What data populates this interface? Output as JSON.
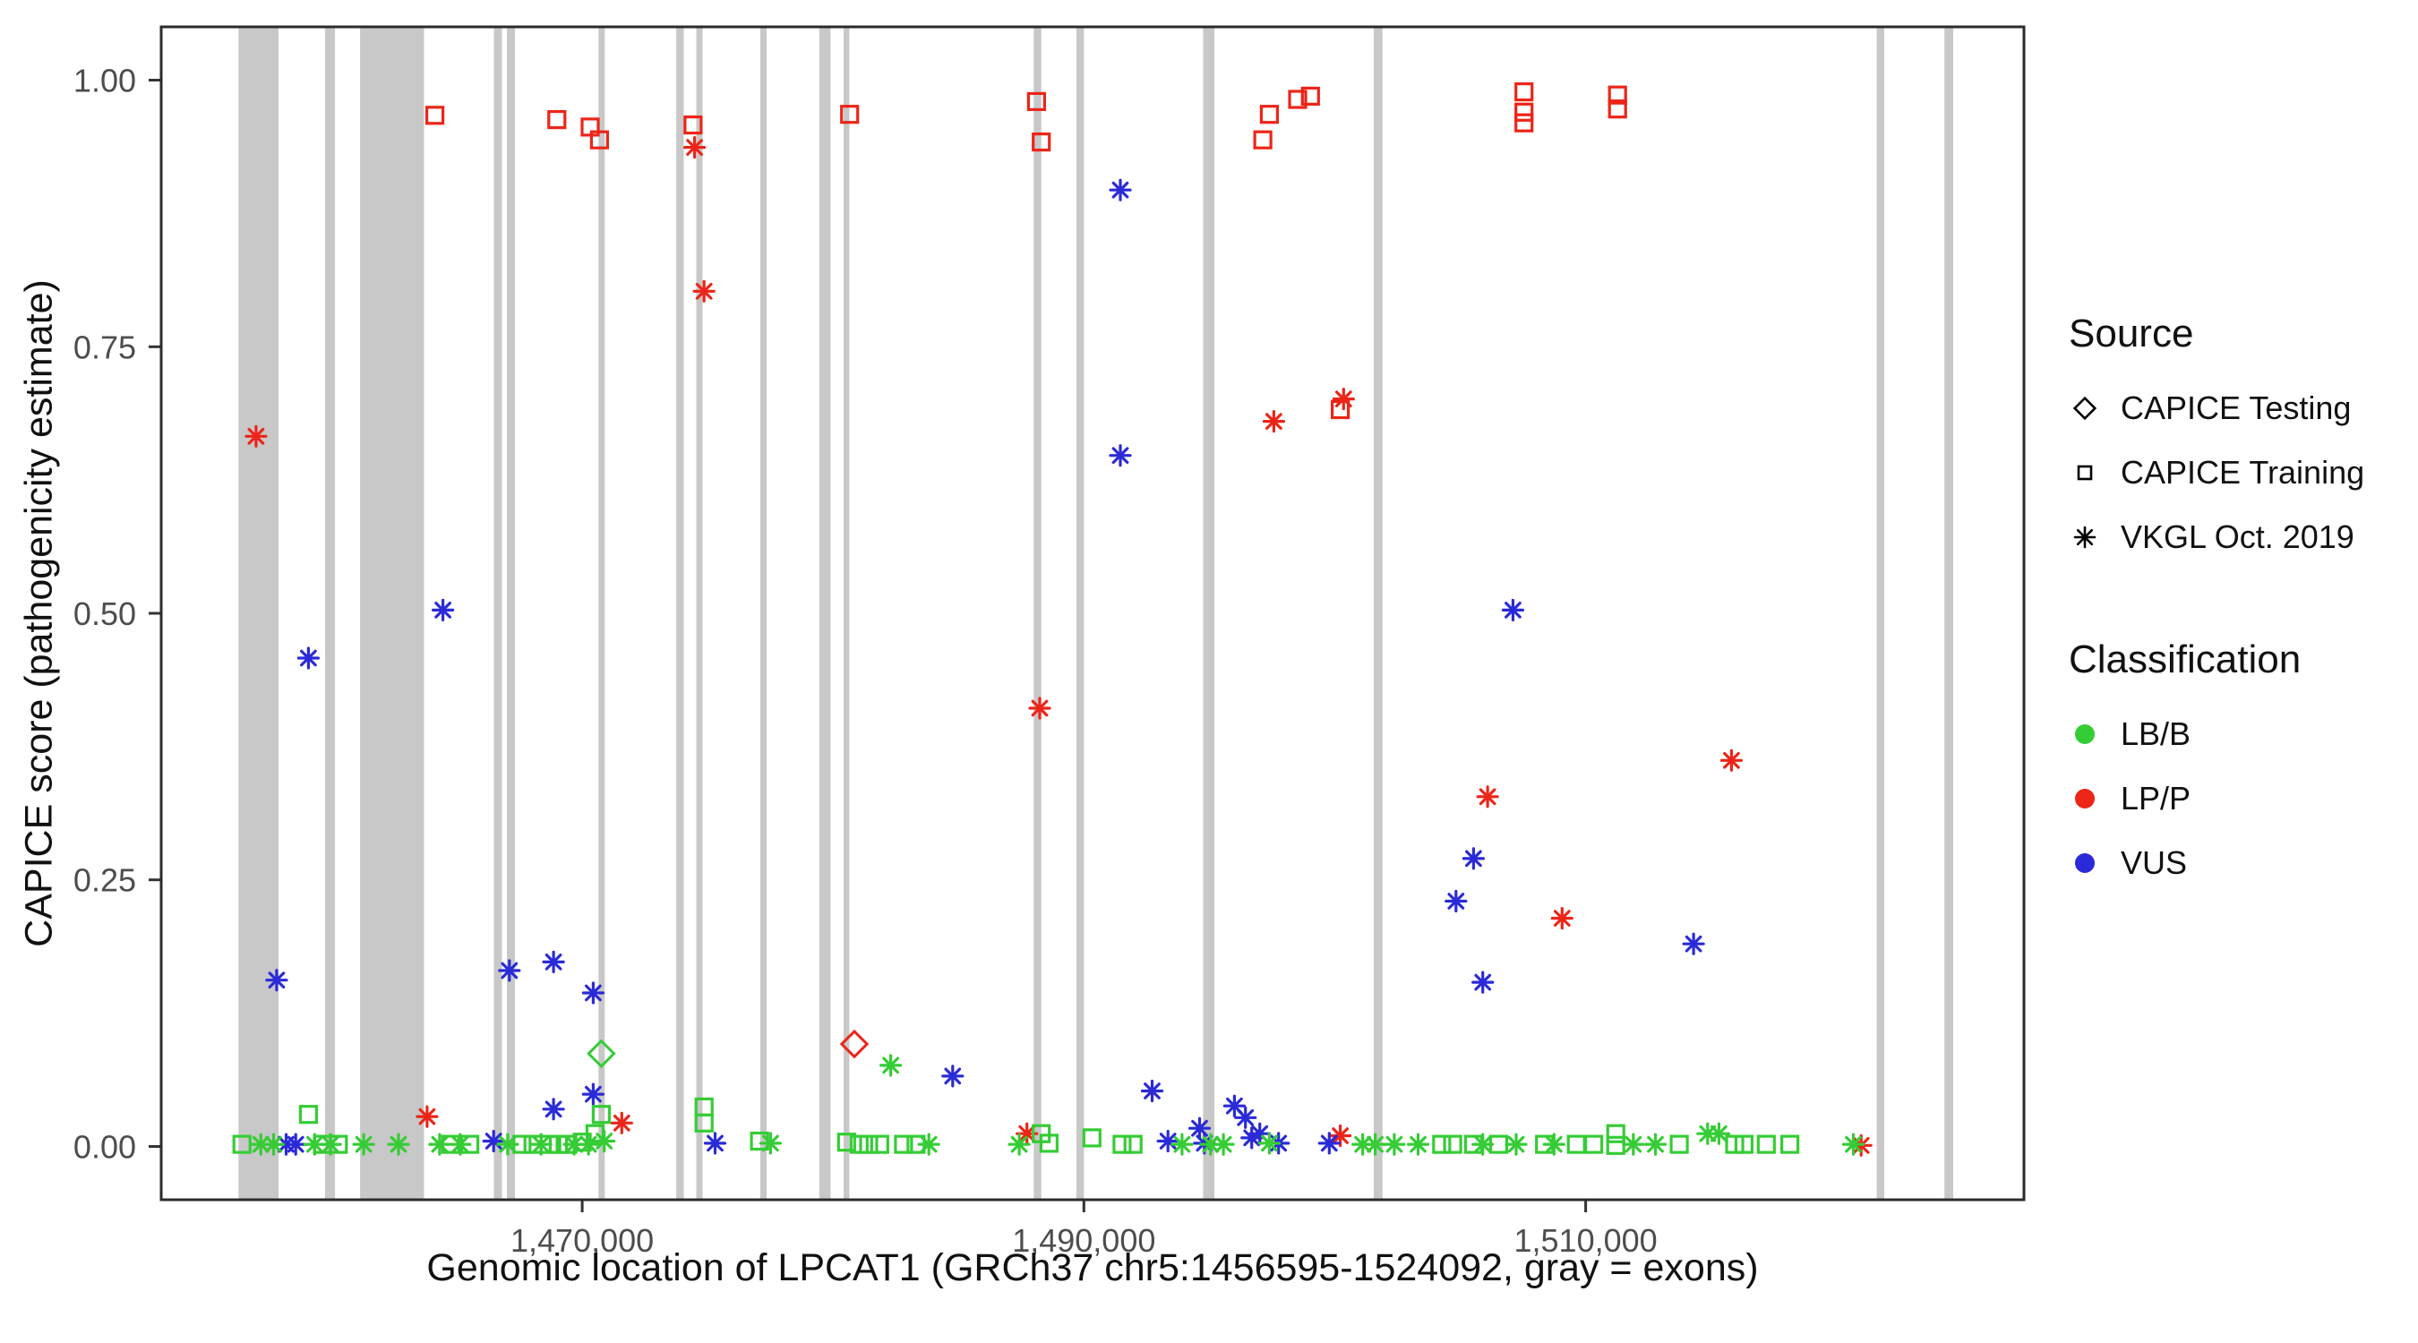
{
  "chart_data": {
    "type": "scatter",
    "title": "",
    "xlabel": "Genomic location of LPCAT1 (GRCh37 chr5:1456595-1524092, gray = exons)",
    "ylabel": "CAPICE score (pathogenicity estimate)",
    "xlim": [
      1453220,
      1527470
    ],
    "ylim": [
      -0.05,
      1.05
    ],
    "grid": false,
    "legend_position": "right",
    "exon_color": "#c8c8c8",
    "x_ticks": [
      {
        "value": 1470000,
        "label": "1,470,000"
      },
      {
        "value": 1490000,
        "label": "1,490,000"
      },
      {
        "value": 1510000,
        "label": "1,510,000"
      }
    ],
    "y_ticks": [
      {
        "value": 0.0,
        "label": "0.00"
      },
      {
        "value": 0.25,
        "label": "0.25"
      },
      {
        "value": 0.5,
        "label": "0.50"
      },
      {
        "value": 0.75,
        "label": "0.75"
      },
      {
        "value": 1.0,
        "label": "1.00"
      }
    ],
    "exons": [
      [
        1456300,
        1457900
      ],
      [
        1459750,
        1460150
      ],
      [
        1461150,
        1463700
      ],
      [
        1466480,
        1466800
      ],
      [
        1467000,
        1467320
      ],
      [
        1470650,
        1470900
      ],
      [
        1473750,
        1474050
      ],
      [
        1474550,
        1474800
      ],
      [
        1477100,
        1477350
      ],
      [
        1479450,
        1479900
      ],
      [
        1480420,
        1480650
      ],
      [
        1488000,
        1488300
      ],
      [
        1489700,
        1490000
      ],
      [
        1494750,
        1495200
      ],
      [
        1501550,
        1501900
      ],
      [
        1521600,
        1521900
      ],
      [
        1524300,
        1524650
      ]
    ],
    "legend": {
      "source_title": "Source",
      "sources": [
        {
          "id": "testing",
          "label": "CAPICE Testing",
          "shape": "diamond"
        },
        {
          "id": "training",
          "label": "CAPICE Training",
          "shape": "square"
        },
        {
          "id": "vkgl",
          "label": "VKGL Oct. 2019",
          "shape": "asterisk"
        }
      ],
      "classification_title": "Classification",
      "classes": [
        {
          "id": "LB/B",
          "label": "LB/B",
          "color": "#35cc35"
        },
        {
          "id": "LP/P",
          "label": "LP/P",
          "color": "#ec2518"
        },
        {
          "id": "VUS",
          "label": "VUS",
          "color": "#2a2ad8"
        }
      ]
    },
    "points": [
      {
        "x": 1464130,
        "y": 0.967,
        "source": "training",
        "class": "LP/P"
      },
      {
        "x": 1468990,
        "y": 0.963,
        "source": "training",
        "class": "LP/P"
      },
      {
        "x": 1470320,
        "y": 0.956,
        "source": "training",
        "class": "LP/P"
      },
      {
        "x": 1470690,
        "y": 0.944,
        "source": "training",
        "class": "LP/P"
      },
      {
        "x": 1474420,
        "y": 0.958,
        "source": "training",
        "class": "LP/P"
      },
      {
        "x": 1480660,
        "y": 0.968,
        "source": "training",
        "class": "LP/P"
      },
      {
        "x": 1488110,
        "y": 0.98,
        "source": "training",
        "class": "LP/P"
      },
      {
        "x": 1488300,
        "y": 0.942,
        "source": "training",
        "class": "LP/P"
      },
      {
        "x": 1497130,
        "y": 0.944,
        "source": "training",
        "class": "LP/P"
      },
      {
        "x": 1497390,
        "y": 0.968,
        "source": "training",
        "class": "LP/P"
      },
      {
        "x": 1498520,
        "y": 0.982,
        "source": "training",
        "class": "LP/P"
      },
      {
        "x": 1499030,
        "y": 0.985,
        "source": "training",
        "class": "LP/P"
      },
      {
        "x": 1507540,
        "y": 0.989,
        "source": "training",
        "class": "LP/P"
      },
      {
        "x": 1507540,
        "y": 0.97,
        "source": "training",
        "class": "LP/P"
      },
      {
        "x": 1507540,
        "y": 0.96,
        "source": "training",
        "class": "LP/P"
      },
      {
        "x": 1511270,
        "y": 0.986,
        "source": "training",
        "class": "LP/P"
      },
      {
        "x": 1511270,
        "y": 0.973,
        "source": "training",
        "class": "LP/P"
      },
      {
        "x": 1500220,
        "y": 0.691,
        "source": "training",
        "class": "LP/P"
      },
      {
        "x": 1480850,
        "y": 0.096,
        "source": "testing",
        "class": "LP/P"
      },
      {
        "x": 1470760,
        "y": 0.087,
        "source": "testing",
        "class": "LB/B"
      },
      {
        "x": 1457000,
        "y": 0.666,
        "source": "vkgl",
        "class": "LP/P"
      },
      {
        "x": 1474480,
        "y": 0.937,
        "source": "vkgl",
        "class": "LP/P"
      },
      {
        "x": 1474860,
        "y": 0.802,
        "source": "vkgl",
        "class": "LP/P"
      },
      {
        "x": 1488240,
        "y": 0.411,
        "source": "vkgl",
        "class": "LP/P"
      },
      {
        "x": 1497570,
        "y": 0.68,
        "source": "vkgl",
        "class": "LP/P"
      },
      {
        "x": 1500350,
        "y": 0.701,
        "source": "vkgl",
        "class": "LP/P"
      },
      {
        "x": 1506090,
        "y": 0.328,
        "source": "vkgl",
        "class": "LP/P"
      },
      {
        "x": 1509060,
        "y": 0.214,
        "source": "vkgl",
        "class": "LP/P"
      },
      {
        "x": 1515810,
        "y": 0.362,
        "source": "vkgl",
        "class": "LP/P"
      },
      {
        "x": 1463820,
        "y": 0.028,
        "source": "vkgl",
        "class": "LP/P"
      },
      {
        "x": 1471580,
        "y": 0.022,
        "source": "vkgl",
        "class": "LP/P"
      },
      {
        "x": 1487730,
        "y": 0.012,
        "source": "vkgl",
        "class": "LP/P"
      },
      {
        "x": 1500220,
        "y": 0.01,
        "source": "vkgl",
        "class": "LP/P"
      },
      {
        "x": 1520980,
        "y": 0.001,
        "source": "vkgl",
        "class": "LP/P"
      },
      {
        "x": 1457820,
        "y": 0.156,
        "source": "vkgl",
        "class": "VUS"
      },
      {
        "x": 1459090,
        "y": 0.458,
        "source": "vkgl",
        "class": "VUS"
      },
      {
        "x": 1464450,
        "y": 0.503,
        "source": "vkgl",
        "class": "VUS"
      },
      {
        "x": 1467100,
        "y": 0.165,
        "source": "vkgl",
        "class": "VUS"
      },
      {
        "x": 1468860,
        "y": 0.173,
        "source": "vkgl",
        "class": "VUS"
      },
      {
        "x": 1470440,
        "y": 0.144,
        "source": "vkgl",
        "class": "VUS"
      },
      {
        "x": 1491450,
        "y": 0.897,
        "source": "vkgl",
        "class": "VUS"
      },
      {
        "x": 1491450,
        "y": 0.648,
        "source": "vkgl",
        "class": "VUS"
      },
      {
        "x": 1504830,
        "y": 0.23,
        "source": "vkgl",
        "class": "VUS"
      },
      {
        "x": 1505530,
        "y": 0.27,
        "source": "vkgl",
        "class": "VUS"
      },
      {
        "x": 1505900,
        "y": 0.154,
        "source": "vkgl",
        "class": "VUS"
      },
      {
        "x": 1507100,
        "y": 0.503,
        "source": "vkgl",
        "class": "VUS"
      },
      {
        "x": 1514300,
        "y": 0.19,
        "source": "vkgl",
        "class": "VUS"
      },
      {
        "x": 1458200,
        "y": 0.002,
        "source": "vkgl",
        "class": "VUS"
      },
      {
        "x": 1458580,
        "y": 0.002,
        "source": "vkgl",
        "class": "VUS"
      },
      {
        "x": 1466470,
        "y": 0.005,
        "source": "vkgl",
        "class": "VUS"
      },
      {
        "x": 1468860,
        "y": 0.035,
        "source": "vkgl",
        "class": "VUS"
      },
      {
        "x": 1470440,
        "y": 0.049,
        "source": "vkgl",
        "class": "VUS"
      },
      {
        "x": 1475300,
        "y": 0.003,
        "source": "vkgl",
        "class": "VUS"
      },
      {
        "x": 1484770,
        "y": 0.066,
        "source": "vkgl",
        "class": "VUS"
      },
      {
        "x": 1492720,
        "y": 0.052,
        "source": "vkgl",
        "class": "VUS"
      },
      {
        "x": 1493350,
        "y": 0.005,
        "source": "vkgl",
        "class": "VUS"
      },
      {
        "x": 1494610,
        "y": 0.017,
        "source": "vkgl",
        "class": "VUS"
      },
      {
        "x": 1494800,
        "y": 0.003,
        "source": "vkgl",
        "class": "VUS"
      },
      {
        "x": 1496000,
        "y": 0.038,
        "source": "vkgl",
        "class": "VUS"
      },
      {
        "x": 1496440,
        "y": 0.027,
        "source": "vkgl",
        "class": "VUS"
      },
      {
        "x": 1496690,
        "y": 0.008,
        "source": "vkgl",
        "class": "VUS"
      },
      {
        "x": 1497010,
        "y": 0.012,
        "source": "vkgl",
        "class": "VUS"
      },
      {
        "x": 1497760,
        "y": 0.003,
        "source": "vkgl",
        "class": "VUS"
      },
      {
        "x": 1499780,
        "y": 0.003,
        "source": "vkgl",
        "class": "VUS"
      },
      {
        "x": 1456440,
        "y": 0.002,
        "source": "training",
        "class": "LB/B"
      },
      {
        "x": 1459090,
        "y": 0.03,
        "source": "training",
        "class": "LB/B"
      },
      {
        "x": 1459650,
        "y": 0.002,
        "source": "training",
        "class": "LB/B"
      },
      {
        "x": 1460280,
        "y": 0.002,
        "source": "training",
        "class": "LB/B"
      },
      {
        "x": 1464760,
        "y": 0.002,
        "source": "training",
        "class": "LB/B"
      },
      {
        "x": 1465520,
        "y": 0.002,
        "source": "training",
        "class": "LB/B"
      },
      {
        "x": 1467600,
        "y": 0.002,
        "source": "training",
        "class": "LB/B"
      },
      {
        "x": 1468040,
        "y": 0.002,
        "source": "training",
        "class": "LB/B"
      },
      {
        "x": 1468680,
        "y": 0.002,
        "source": "training",
        "class": "LB/B"
      },
      {
        "x": 1469050,
        "y": 0.002,
        "source": "training",
        "class": "LB/B"
      },
      {
        "x": 1469430,
        "y": 0.002,
        "source": "training",
        "class": "LB/B"
      },
      {
        "x": 1470000,
        "y": 0.004,
        "source": "training",
        "class": "LB/B"
      },
      {
        "x": 1470510,
        "y": 0.012,
        "source": "training",
        "class": "LB/B"
      },
      {
        "x": 1470760,
        "y": 0.03,
        "source": "training",
        "class": "LB/B"
      },
      {
        "x": 1474860,
        "y": 0.037,
        "source": "training",
        "class": "LB/B"
      },
      {
        "x": 1474860,
        "y": 0.022,
        "source": "training",
        "class": "LB/B"
      },
      {
        "x": 1477070,
        "y": 0.005,
        "source": "training",
        "class": "LB/B"
      },
      {
        "x": 1480540,
        "y": 0.004,
        "source": "training",
        "class": "LB/B"
      },
      {
        "x": 1481040,
        "y": 0.002,
        "source": "training",
        "class": "LB/B"
      },
      {
        "x": 1481420,
        "y": 0.002,
        "source": "training",
        "class": "LB/B"
      },
      {
        "x": 1481860,
        "y": 0.002,
        "source": "training",
        "class": "LB/B"
      },
      {
        "x": 1482810,
        "y": 0.002,
        "source": "training",
        "class": "LB/B"
      },
      {
        "x": 1483310,
        "y": 0.002,
        "source": "training",
        "class": "LB/B"
      },
      {
        "x": 1488300,
        "y": 0.012,
        "source": "training",
        "class": "LB/B"
      },
      {
        "x": 1488610,
        "y": 0.003,
        "source": "training",
        "class": "LB/B"
      },
      {
        "x": 1490320,
        "y": 0.008,
        "source": "training",
        "class": "LB/B"
      },
      {
        "x": 1491520,
        "y": 0.002,
        "source": "training",
        "class": "LB/B"
      },
      {
        "x": 1491960,
        "y": 0.002,
        "source": "training",
        "class": "LB/B"
      },
      {
        "x": 1504260,
        "y": 0.002,
        "source": "training",
        "class": "LB/B"
      },
      {
        "x": 1504700,
        "y": 0.002,
        "source": "training",
        "class": "LB/B"
      },
      {
        "x": 1505530,
        "y": 0.002,
        "source": "training",
        "class": "LB/B"
      },
      {
        "x": 1506530,
        "y": 0.002,
        "source": "training",
        "class": "LB/B"
      },
      {
        "x": 1508360,
        "y": 0.002,
        "source": "training",
        "class": "LB/B"
      },
      {
        "x": 1509630,
        "y": 0.002,
        "source": "training",
        "class": "LB/B"
      },
      {
        "x": 1510320,
        "y": 0.002,
        "source": "training",
        "class": "LB/B"
      },
      {
        "x": 1511200,
        "y": 0.012,
        "source": "training",
        "class": "LB/B"
      },
      {
        "x": 1511200,
        "y": 0.001,
        "source": "training",
        "class": "LB/B"
      },
      {
        "x": 1513730,
        "y": 0.002,
        "source": "training",
        "class": "LB/B"
      },
      {
        "x": 1515940,
        "y": 0.002,
        "source": "training",
        "class": "LB/B"
      },
      {
        "x": 1516310,
        "y": 0.002,
        "source": "training",
        "class": "LB/B"
      },
      {
        "x": 1517200,
        "y": 0.002,
        "source": "training",
        "class": "LB/B"
      },
      {
        "x": 1518140,
        "y": 0.002,
        "source": "training",
        "class": "LB/B"
      },
      {
        "x": 1457190,
        "y": 0.002,
        "source": "vkgl",
        "class": "LB/B"
      },
      {
        "x": 1457700,
        "y": 0.002,
        "source": "vkgl",
        "class": "LB/B"
      },
      {
        "x": 1459340,
        "y": 0.002,
        "source": "vkgl",
        "class": "LB/B"
      },
      {
        "x": 1459970,
        "y": 0.002,
        "source": "vkgl",
        "class": "LB/B"
      },
      {
        "x": 1461290,
        "y": 0.002,
        "source": "vkgl",
        "class": "LB/B"
      },
      {
        "x": 1462680,
        "y": 0.002,
        "source": "vkgl",
        "class": "LB/B"
      },
      {
        "x": 1464320,
        "y": 0.002,
        "source": "vkgl",
        "class": "LB/B"
      },
      {
        "x": 1465140,
        "y": 0.002,
        "source": "vkgl",
        "class": "LB/B"
      },
      {
        "x": 1467030,
        "y": 0.002,
        "source": "vkgl",
        "class": "LB/B"
      },
      {
        "x": 1468360,
        "y": 0.002,
        "source": "vkgl",
        "class": "LB/B"
      },
      {
        "x": 1469680,
        "y": 0.002,
        "source": "vkgl",
        "class": "LB/B"
      },
      {
        "x": 1470250,
        "y": 0.002,
        "source": "vkgl",
        "class": "LB/B"
      },
      {
        "x": 1470880,
        "y": 0.005,
        "source": "vkgl",
        "class": "LB/B"
      },
      {
        "x": 1477510,
        "y": 0.003,
        "source": "vkgl",
        "class": "LB/B"
      },
      {
        "x": 1482300,
        "y": 0.076,
        "source": "vkgl",
        "class": "LB/B"
      },
      {
        "x": 1483820,
        "y": 0.002,
        "source": "vkgl",
        "class": "LB/B"
      },
      {
        "x": 1487420,
        "y": 0.002,
        "source": "vkgl",
        "class": "LB/B"
      },
      {
        "x": 1493910,
        "y": 0.002,
        "source": "vkgl",
        "class": "LB/B"
      },
      {
        "x": 1495050,
        "y": 0.002,
        "source": "vkgl",
        "class": "LB/B"
      },
      {
        "x": 1495560,
        "y": 0.002,
        "source": "vkgl",
        "class": "LB/B"
      },
      {
        "x": 1497390,
        "y": 0.003,
        "source": "vkgl",
        "class": "LB/B"
      },
      {
        "x": 1501110,
        "y": 0.002,
        "source": "vkgl",
        "class": "LB/B"
      },
      {
        "x": 1501610,
        "y": 0.002,
        "source": "vkgl",
        "class": "LB/B"
      },
      {
        "x": 1502370,
        "y": 0.002,
        "source": "vkgl",
        "class": "LB/B"
      },
      {
        "x": 1503320,
        "y": 0.002,
        "source": "vkgl",
        "class": "LB/B"
      },
      {
        "x": 1505900,
        "y": 0.002,
        "source": "vkgl",
        "class": "LB/B"
      },
      {
        "x": 1507230,
        "y": 0.002,
        "source": "vkgl",
        "class": "LB/B"
      },
      {
        "x": 1508740,
        "y": 0.002,
        "source": "vkgl",
        "class": "LB/B"
      },
      {
        "x": 1511900,
        "y": 0.002,
        "source": "vkgl",
        "class": "LB/B"
      },
      {
        "x": 1512780,
        "y": 0.002,
        "source": "vkgl",
        "class": "LB/B"
      },
      {
        "x": 1514860,
        "y": 0.012,
        "source": "vkgl",
        "class": "LB/B"
      },
      {
        "x": 1515310,
        "y": 0.012,
        "source": "vkgl",
        "class": "LB/B"
      },
      {
        "x": 1520670,
        "y": 0.002,
        "source": "vkgl",
        "class": "LB/B"
      }
    ]
  }
}
